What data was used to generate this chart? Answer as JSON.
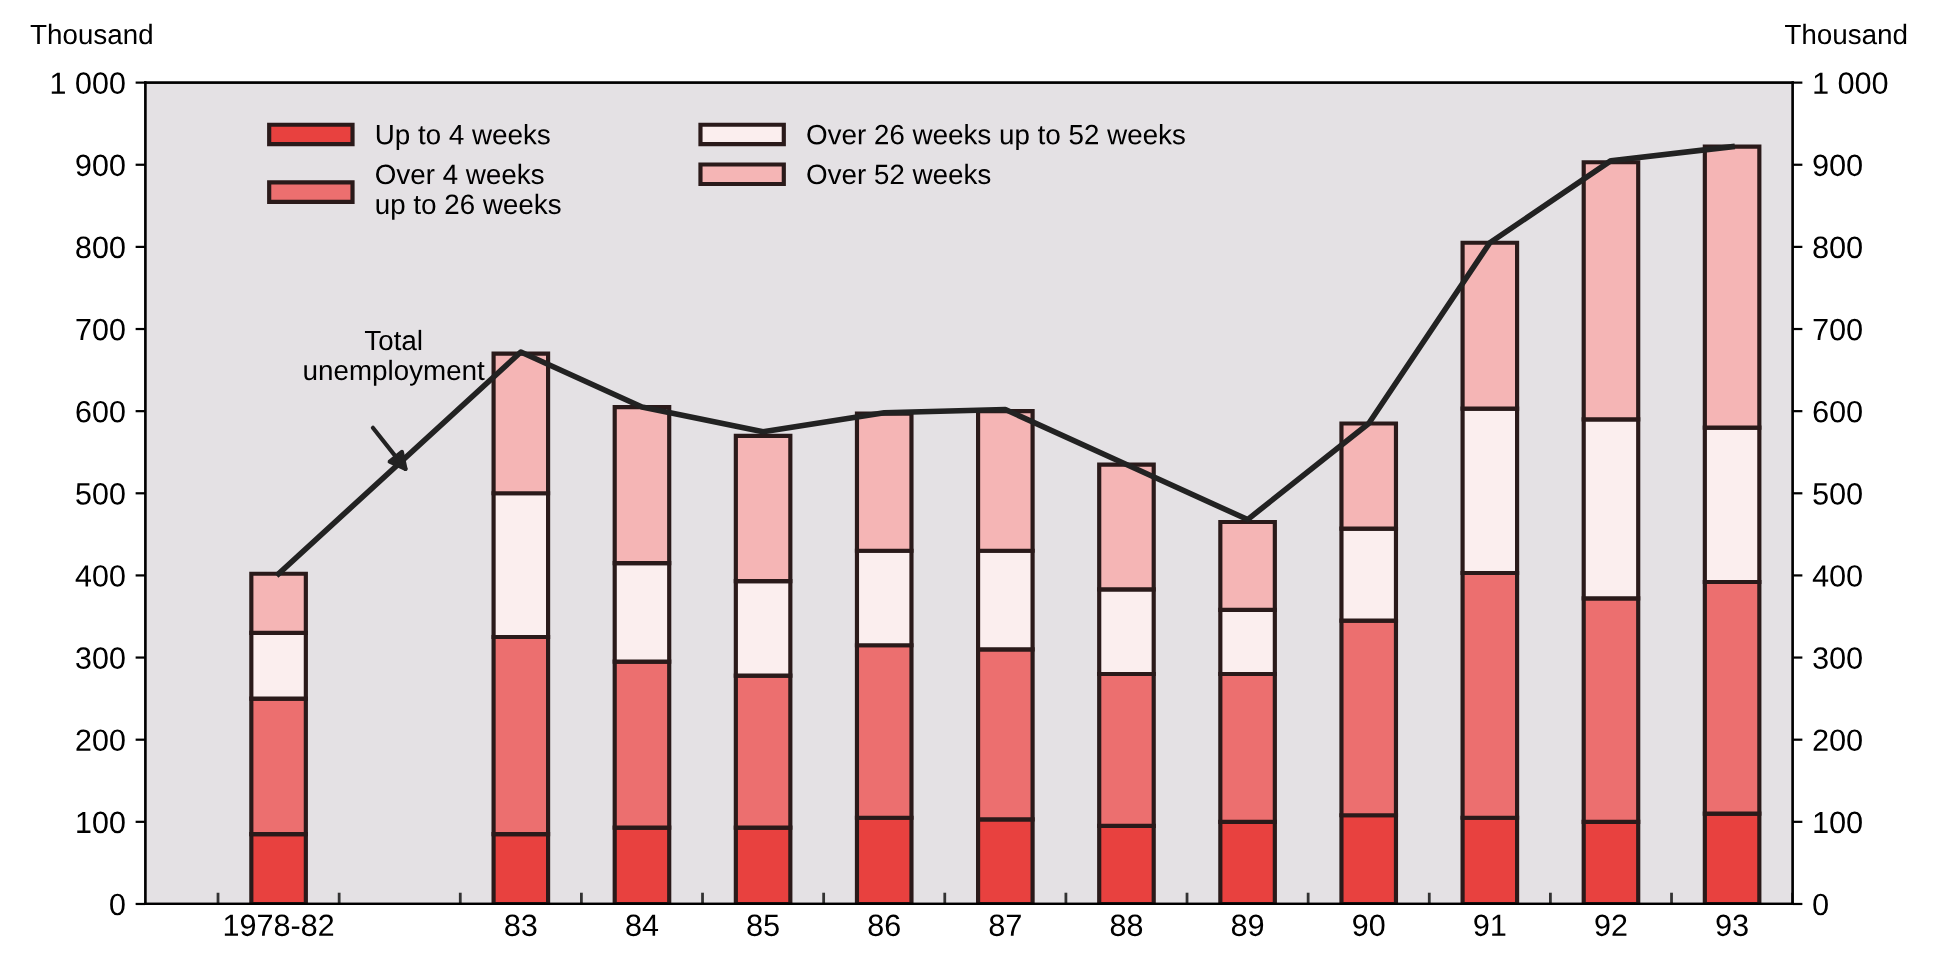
{
  "chart_data": {
    "type": "bar",
    "stacked": true,
    "categories": [
      "1978-82",
      null,
      "83",
      "84",
      "85",
      "86",
      "87",
      "88",
      "89",
      "90",
      "91",
      "92",
      "93"
    ],
    "series": [
      {
        "name": "Up to 4 weeks",
        "color": "#e8413f",
        "values": [
          85,
          null,
          85,
          93,
          93,
          105,
          103,
          95,
          100,
          108,
          105,
          100,
          110
        ]
      },
      {
        "name": "Over 4 weeks\nup to 26 weeks",
        "color": "#ec6f6f",
        "values": [
          165,
          null,
          240,
          202,
          185,
          210,
          207,
          185,
          180,
          237,
          298,
          272,
          282
        ]
      },
      {
        "name": "Over 26 weeks up to 52 weeks",
        "color": "#fbeeee",
        "values": [
          80,
          null,
          175,
          120,
          115,
          115,
          120,
          103,
          78,
          112,
          200,
          218,
          188
        ]
      },
      {
        "name": "Over 52 weeks",
        "color": "#f5b5b5",
        "values": [
          72,
          null,
          170,
          190,
          177,
          167,
          170,
          152,
          107,
          128,
          202,
          313,
          342
        ]
      },
      {
        "type": "line",
        "color": "#222222",
        "values": [
          402,
          null,
          672,
          605,
          575,
          598,
          602,
          535,
          468,
          585,
          805,
          905,
          922
        ]
      }
    ],
    "ylim": [
      0,
      1000
    ],
    "yticks": [
      0,
      100,
      200,
      300,
      400,
      500,
      600,
      700,
      800,
      900,
      {
        "value": 1000,
        "label": "1 000"
      }
    ],
    "y2lim": [
      0,
      1000
    ],
    "y2ticks": [
      0,
      100,
      200,
      300,
      400,
      500,
      600,
      700,
      800,
      900,
      {
        "value": 1000,
        "label": "1 000"
      }
    ],
    "ylabel": "Thousand",
    "y2label": "Thousand",
    "annotations": [
      "Total\nunemployment"
    ],
    "legend": "top left",
    "grid": false
  }
}
